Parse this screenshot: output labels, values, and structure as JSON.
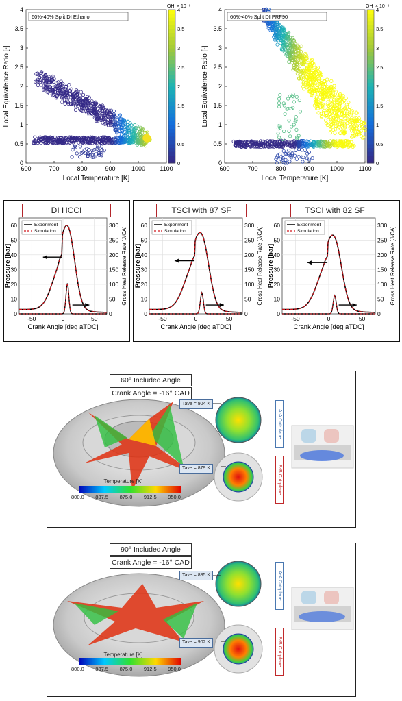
{
  "scatter_panels": [
    {
      "legend": "60%-40% Split DI Ethanol",
      "xlabel": "Local Temperature [K]",
      "ylabel": "Local Equivalence Ratio [-]",
      "xticks": [
        "600",
        "700",
        "800",
        "900",
        "1000",
        "1100"
      ],
      "yticks": [
        "0",
        "0.5",
        "1",
        "1.5",
        "2",
        "2.5",
        "3",
        "3.5",
        "4"
      ],
      "cbar_label": "OH",
      "cbar_exp": "× 10⁻⁸",
      "cbar_ticks": [
        "0",
        "0.5",
        "1",
        "1.5",
        "2",
        "2.5",
        "3",
        "3.5",
        "4"
      ]
    },
    {
      "legend": "60%-40% Split DI PRF90",
      "xlabel": "Local Temperature [K]",
      "ylabel": "Local Equivalence Ratio [-]",
      "xticks": [
        "600",
        "700",
        "800",
        "900",
        "1000",
        "1100"
      ],
      "yticks": [
        "0",
        "0.5",
        "1",
        "1.5",
        "2",
        "2.5",
        "3",
        "3.5",
        "4"
      ],
      "cbar_label": "OH",
      "cbar_exp": "× 10⁻⁸",
      "cbar_ticks": [
        "0",
        "0.5",
        "1",
        "1.5",
        "2",
        "2.5",
        "3",
        "3.5",
        "4"
      ]
    }
  ],
  "pressure_panels": [
    {
      "title": "DI HCCI",
      "peak_p": 62,
      "peak_cad": 10,
      "hrr_peak": 95,
      "hrr_cad": 7
    },
    {
      "title": "TSCI with 87 SF",
      "peak_p": 58,
      "peak_cad": 11,
      "hrr_peak": 66,
      "hrr_cad": 9
    },
    {
      "title": "TSCI with 82 SF",
      "peak_p": 56,
      "peak_cad": 11,
      "hrr_peak": 57,
      "hrr_cad": 9
    }
  ],
  "pressure_common": {
    "xlabel": "Crank Angle [deg aTDC]",
    "ylabel_left": "Pressure [bar]",
    "ylabel_right": "Gross Heat Release Rate [J/CA]",
    "legend_exp": "Experiment",
    "legend_sim": "Simulation",
    "xticks": [
      "-50",
      "0",
      "50"
    ],
    "yticks_left": [
      "0",
      "10",
      "20",
      "30",
      "40",
      "50",
      "60"
    ],
    "yticks_right": [
      "0",
      "50",
      "100",
      "150",
      "200",
      "250",
      "300"
    ]
  },
  "chart_data": [
    {
      "type": "scatter",
      "title": "",
      "legend": "60%-40% Split DI Ethanol",
      "xlabel": "Local Temperature [K]",
      "ylabel": "Local Equivalence Ratio [-]",
      "xlim": [
        600,
        1100
      ],
      "ylim": [
        0,
        4
      ],
      "colorbar": "OH × 10^-8",
      "clim": [
        0,
        4
      ],
      "points": [
        [
          650,
          2.25
        ],
        [
          700,
          1.9
        ],
        [
          750,
          1.6
        ],
        [
          800,
          1.7
        ],
        [
          850,
          1.1
        ],
        [
          900,
          0.9
        ],
        [
          950,
          0.8
        ],
        [
          1000,
          0.7
        ],
        [
          1040,
          0.65
        ],
        [
          700,
          0.6
        ],
        [
          800,
          0.55
        ],
        [
          900,
          0.6
        ],
        [
          1000,
          0.6
        ],
        [
          810,
          0.2
        ],
        [
          850,
          0.3
        ]
      ]
    },
    {
      "type": "scatter",
      "title": "",
      "legend": "60%-40% Split DI PRF90",
      "xlabel": "Local Temperature [K]",
      "ylabel": "Local Equivalence Ratio [-]",
      "xlim": [
        600,
        1100
      ],
      "ylim": [
        0,
        4
      ],
      "colorbar": "OH × 10^-8",
      "clim": [
        0,
        4
      ],
      "points": [
        [
          745,
          3.9
        ],
        [
          780,
          3.3
        ],
        [
          820,
          2.7
        ],
        [
          860,
          2.2
        ],
        [
          900,
          1.8
        ],
        [
          950,
          1.3
        ],
        [
          1000,
          0.9
        ],
        [
          1050,
          0.65
        ],
        [
          650,
          0.45
        ],
        [
          750,
          0.5
        ],
        [
          850,
          0.55
        ],
        [
          950,
          0.6
        ],
        [
          800,
          0.05
        ],
        [
          900,
          0.1
        ]
      ]
    },
    {
      "type": "line",
      "title": "DI HCCI",
      "xlabel": "Crank Angle [deg aTDC]",
      "ylabel": "Pressure [bar]",
      "xlim": [
        -70,
        70
      ],
      "ylim": [
        0,
        65
      ],
      "series": [
        {
          "name": "Experiment",
          "peak": 62
        },
        {
          "name": "Simulation",
          "peak": 62
        }
      ]
    },
    {
      "type": "line",
      "title": "TSCI with 87 SF",
      "xlabel": "Crank Angle [deg aTDC]",
      "ylabel": "Pressure [bar]",
      "xlim": [
        -70,
        70
      ],
      "ylim": [
        0,
        60
      ],
      "series": [
        {
          "name": "Experiment",
          "peak": 58
        },
        {
          "name": "Simulation",
          "peak": 58
        }
      ]
    },
    {
      "type": "line",
      "title": "TSCI with 82 SF",
      "xlabel": "Crank Angle [deg aTDC]",
      "ylabel": "Pressure [bar]",
      "xlim": [
        -70,
        70
      ],
      "ylim": [
        0,
        60
      ],
      "series": [
        {
          "name": "Experiment",
          "peak": 56
        },
        {
          "name": "Simulation",
          "peak": 56
        }
      ]
    }
  ],
  "cfd_panels": [
    {
      "angle": "60° Included Angle",
      "crank": "Crank Angle = -16° CAD",
      "tave_a": "Tave = 904  K",
      "tave_b": "Tave = 879  K",
      "cut_a": "A-A Cut-plane",
      "cut_b": "B-B Cut-plane"
    },
    {
      "angle": "90° Included Angle",
      "crank": "Crank Angle = -16° CAD",
      "tave_a": "Tave = 885  K",
      "tave_b": "Tave = 902  K",
      "cut_a": "A-A Cut-plane",
      "cut_b": "B-B Cut-plane"
    }
  ],
  "colorbar": {
    "label": "Temperature [K]",
    "ticks": [
      "800.0",
      "837.5",
      "875.0",
      "912.5",
      "950.0"
    ]
  }
}
